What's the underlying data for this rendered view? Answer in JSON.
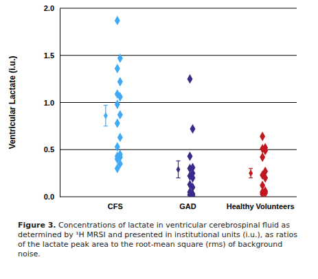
{
  "chart_data": {
    "type": "strip",
    "y_label": "Ventricular Lactate (i.u.)",
    "categories": [
      "CFS",
      "GAD",
      "Healthy Volunteers"
    ],
    "values": [
      [
        1.87,
        1.47,
        1.36,
        1.22,
        1.09,
        1.06,
        0.98,
        0.87,
        0.78,
        0.63,
        0.53,
        0.45,
        0.43,
        0.42,
        0.4,
        0.35,
        0.3
      ],
      [
        1.25,
        0.72,
        0.43,
        0.31,
        0.3,
        0.25,
        0.22,
        0.2,
        0.13,
        0.1,
        0.05,
        0.03,
        0.02,
        0.01
      ],
      [
        0.64,
        0.52,
        0.51,
        0.49,
        0.42,
        0.27,
        0.23,
        0.2,
        0.12,
        0.06,
        0.05,
        0.04,
        0.03
      ]
    ],
    "means": [
      0.86,
      0.29,
      0.25
    ],
    "errors": [
      0.11,
      0.09,
      0.05
    ],
    "colors": [
      "#3fa9f5",
      "#3b2a8c",
      "#c0181e"
    ],
    "marker": "diamond",
    "ylim": [
      0,
      2
    ],
    "yticks": [
      {
        "value": 0,
        "label": "0.0"
      },
      {
        "value": 0.5,
        "label": "0.5"
      },
      {
        "value": 1,
        "label": "1.0"
      },
      {
        "value": 1.5,
        "label": "1.5"
      },
      {
        "value": 2,
        "label": "2.0"
      }
    ],
    "grid": true,
    "caption": {
      "label": "Figure 3.",
      "text": "Concentrations of lactate in ventricular cerebrospinal fluid as determined by ¹H MRSI and presented in institutional units (i.u.), as ratios of the lactate peak area to the root-mean square (rms) of background noise."
    }
  }
}
